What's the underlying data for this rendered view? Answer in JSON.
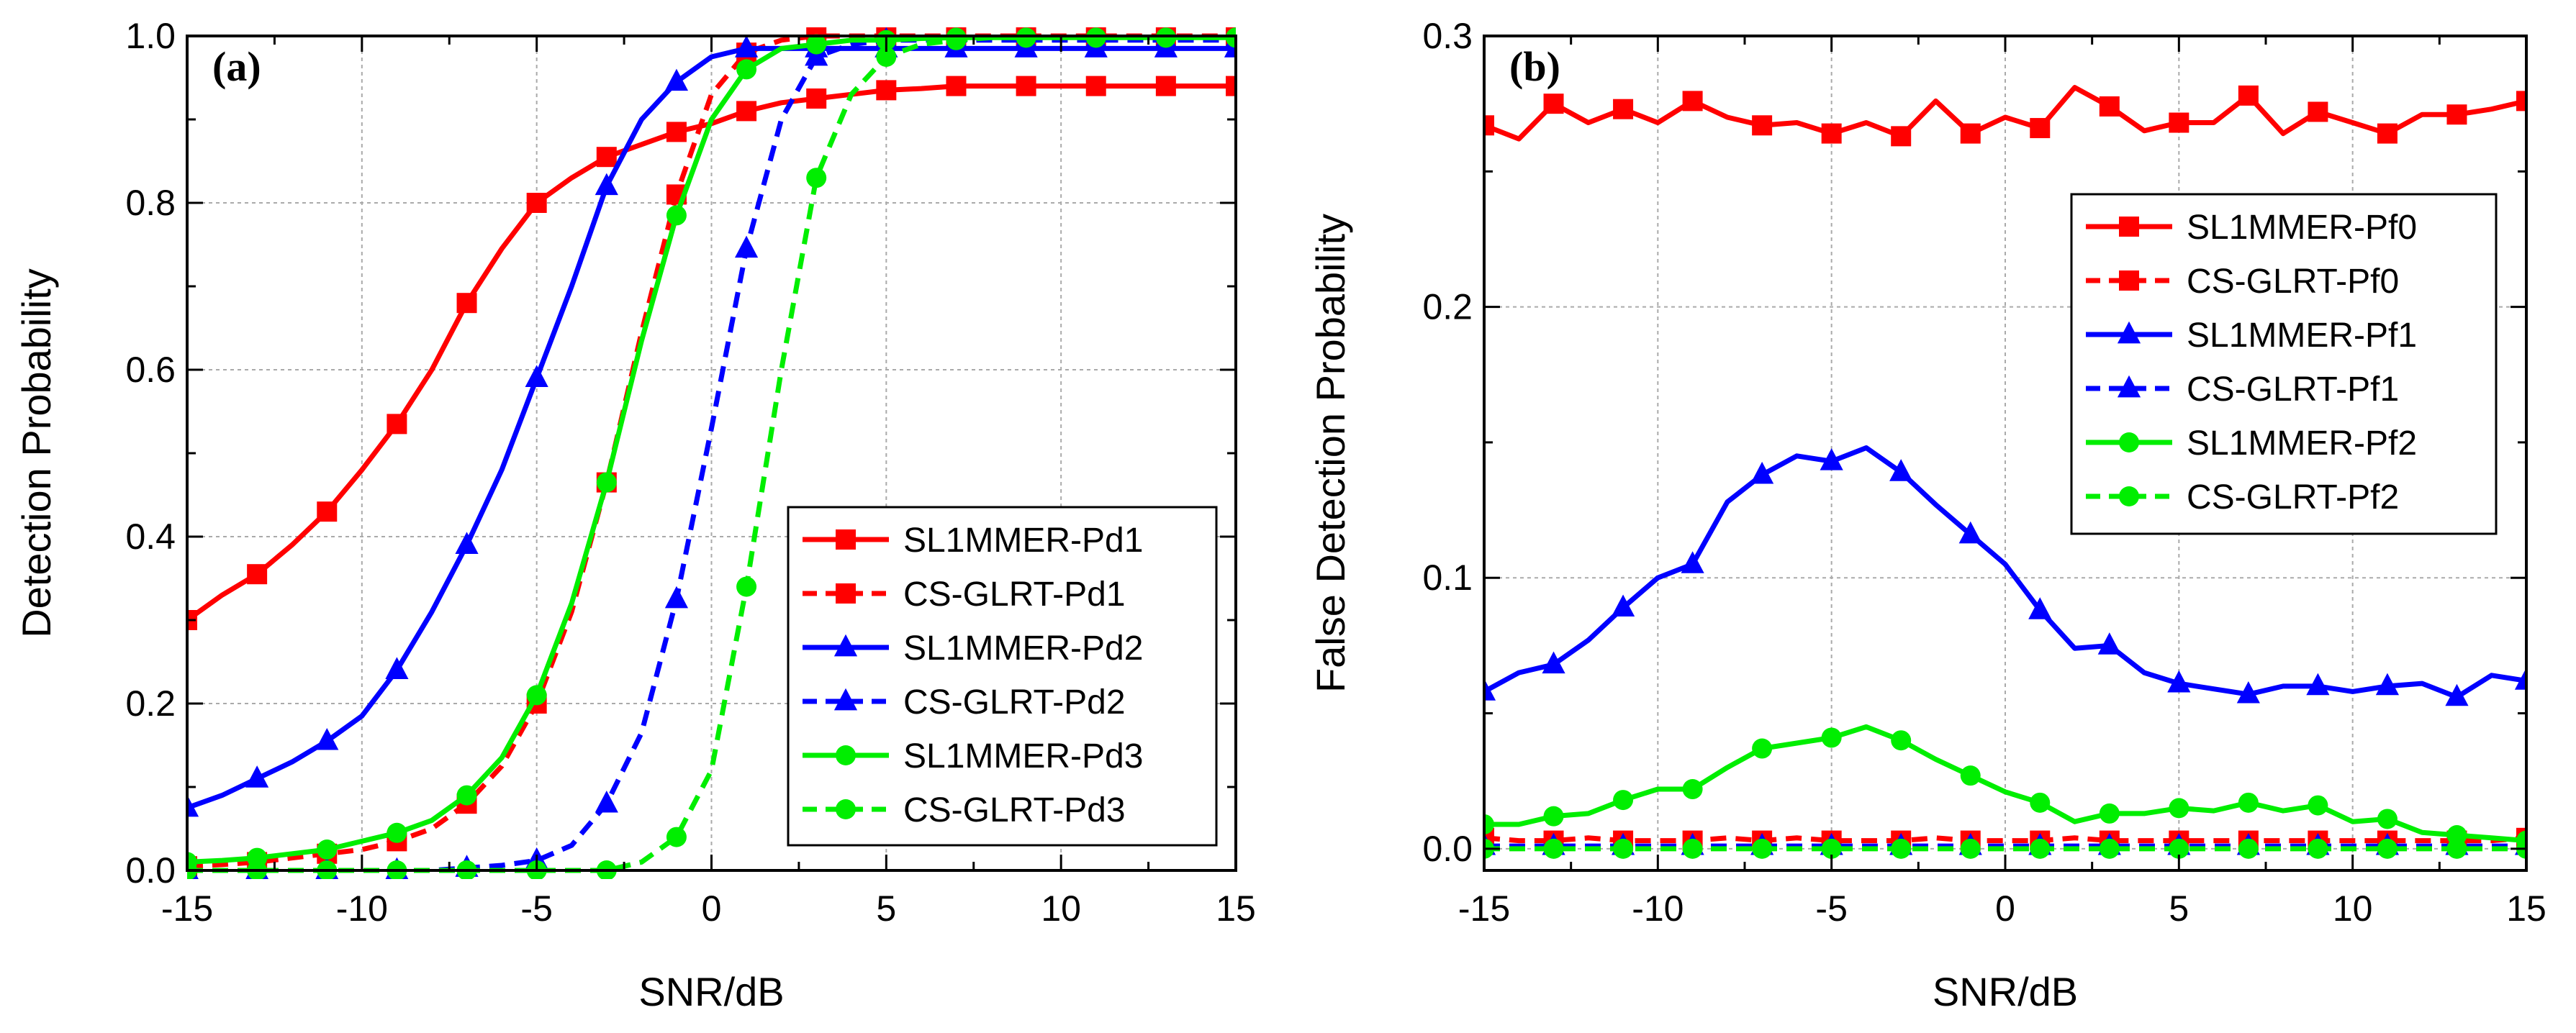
{
  "chart_data": [
    {
      "type": "line",
      "panel_label": "(a)",
      "xlabel": "SNR/dB",
      "ylabel": "Detection Probability",
      "xlim": [
        -15,
        15
      ],
      "ylim": [
        0,
        1.0
      ],
      "x_ticks": [
        "-15",
        "-10",
        "-5",
        "0",
        "5",
        "10",
        "15"
      ],
      "y_ticks": [
        "0.0",
        "0.2",
        "0.4",
        "0.6",
        "0.8",
        "1.0"
      ],
      "grid": true,
      "legend_position": "bottom-right",
      "series": [
        {
          "name": "SL1MMER-Pd1",
          "color": "#ff0000",
          "dash": "solid",
          "marker": "square",
          "x": [
            -15,
            -14,
            -13,
            -12,
            -11,
            -10,
            -9,
            -8,
            -7,
            -6,
            -5,
            -4,
            -3,
            -2,
            -1,
            0,
            1,
            2,
            3,
            4,
            5,
            6,
            7,
            8,
            9,
            10,
            11,
            12,
            13,
            14,
            15
          ],
          "y": [
            0.3,
            0.33,
            0.355,
            0.39,
            0.43,
            0.48,
            0.535,
            0.6,
            0.68,
            0.745,
            0.8,
            0.83,
            0.855,
            0.87,
            0.885,
            0.895,
            0.91,
            0.92,
            0.925,
            0.93,
            0.935,
            0.937,
            0.94,
            0.94,
            0.94,
            0.94,
            0.94,
            0.94,
            0.94,
            0.94,
            0.94
          ]
        },
        {
          "name": "CS-GLRT-Pd1",
          "color": "#ff0000",
          "dash": "dashed",
          "marker": "square",
          "x": [
            -15,
            -14,
            -13,
            -12,
            -11,
            -10,
            -9,
            -8,
            -7,
            -6,
            -5,
            -4,
            -3,
            -2,
            -1,
            0,
            1,
            2,
            3,
            4,
            5,
            6,
            7,
            8,
            9,
            10,
            11,
            12,
            13,
            14,
            15
          ],
          "y": [
            0.005,
            0.007,
            0.01,
            0.015,
            0.02,
            0.025,
            0.035,
            0.05,
            0.08,
            0.125,
            0.2,
            0.31,
            0.465,
            0.645,
            0.81,
            0.93,
            0.98,
            0.995,
            1.0,
            1.0,
            1.0,
            1.0,
            1.0,
            1.0,
            1.0,
            1.0,
            1.0,
            1.0,
            1.0,
            1.0,
            1.0
          ]
        },
        {
          "name": "SL1MMER-Pd2",
          "color": "#0000ff",
          "dash": "solid",
          "marker": "triangle",
          "x": [
            -15,
            -14,
            -13,
            -12,
            -11,
            -10,
            -9,
            -8,
            -7,
            -6,
            -5,
            -4,
            -3,
            -2,
            -1,
            0,
            1,
            2,
            3,
            4,
            5,
            6,
            7,
            8,
            9,
            10,
            11,
            12,
            13,
            14,
            15
          ],
          "y": [
            0.075,
            0.09,
            0.11,
            0.13,
            0.155,
            0.185,
            0.24,
            0.31,
            0.39,
            0.48,
            0.59,
            0.7,
            0.82,
            0.9,
            0.945,
            0.975,
            0.985,
            0.985,
            0.985,
            0.985,
            0.985,
            0.985,
            0.985,
            0.985,
            0.985,
            0.985,
            0.985,
            0.985,
            0.985,
            0.985,
            0.985
          ]
        },
        {
          "name": "CS-GLRT-Pd2",
          "color": "#0000ff",
          "dash": "dashed",
          "marker": "triangle",
          "x": [
            -15,
            -14,
            -13,
            -12,
            -11,
            -10,
            -9,
            -8,
            -7,
            -6,
            -5,
            -4,
            -3,
            -2,
            -1,
            0,
            1,
            2,
            3,
            4,
            5,
            6,
            7,
            8,
            9,
            10,
            11,
            12,
            13,
            14,
            15
          ],
          "y": [
            0.0,
            0.0,
            0.0,
            0.0,
            0.0,
            0.0,
            0.0,
            0.0,
            0.003,
            0.006,
            0.012,
            0.03,
            0.08,
            0.165,
            0.325,
            0.53,
            0.745,
            0.9,
            0.975,
            0.99,
            0.995,
            0.995,
            0.995,
            0.995,
            0.995,
            0.995,
            0.995,
            0.995,
            0.995,
            0.995,
            0.995
          ]
        },
        {
          "name": "SL1MMER-Pd3",
          "color": "#00ee00",
          "dash": "solid",
          "marker": "circle",
          "x": [
            -15,
            -14,
            -13,
            -12,
            -11,
            -10,
            -9,
            -8,
            -7,
            -6,
            -5,
            -4,
            -3,
            -2,
            -1,
            0,
            1,
            2,
            3,
            4,
            5,
            6,
            7,
            8,
            9,
            10,
            11,
            12,
            13,
            14,
            15
          ],
          "y": [
            0.01,
            0.012,
            0.015,
            0.02,
            0.025,
            0.035,
            0.045,
            0.06,
            0.09,
            0.135,
            0.21,
            0.32,
            0.465,
            0.635,
            0.785,
            0.9,
            0.96,
            0.985,
            0.99,
            0.995,
            0.995,
            0.997,
            0.998,
            0.998,
            0.998,
            0.998,
            0.998,
            0.998,
            0.998,
            0.998,
            0.998
          ]
        },
        {
          "name": "CS-GLRT-Pd3",
          "color": "#00ee00",
          "dash": "dashed",
          "marker": "circle",
          "x": [
            -15,
            -14,
            -13,
            -12,
            -11,
            -10,
            -9,
            -8,
            -7,
            -6,
            -5,
            -4,
            -3,
            -2,
            -1,
            0,
            1,
            2,
            3,
            4,
            5,
            6,
            7,
            8,
            9,
            10,
            11,
            12,
            13,
            14,
            15
          ],
          "y": [
            0.0,
            0.0,
            0.0,
            0.0,
            0.0,
            0.0,
            0.0,
            0.0,
            0.0,
            0.0,
            0.0,
            0.0,
            0.0,
            0.01,
            0.04,
            0.12,
            0.34,
            0.6,
            0.83,
            0.93,
            0.975,
            0.99,
            0.995,
            0.998,
            0.998,
            0.998,
            0.998,
            0.998,
            0.998,
            0.998,
            0.998
          ]
        }
      ]
    },
    {
      "type": "line",
      "panel_label": "(b)",
      "xlabel": "SNR/dB",
      "ylabel": "False Detection Probability",
      "xlim": [
        -15,
        15
      ],
      "ylim": [
        -0.008,
        0.3
      ],
      "x_ticks": [
        "-15",
        "-10",
        "-5",
        "0",
        "5",
        "10",
        "15"
      ],
      "y_ticks": [
        "0.0",
        "0.1",
        "0.2",
        "0.3"
      ],
      "grid": true,
      "legend_position": "top-right",
      "series": [
        {
          "name": "SL1MMER-Pf0",
          "color": "#ff0000",
          "dash": "solid",
          "marker": "square",
          "x": [
            -15,
            -14,
            -13,
            -12,
            -11,
            -10,
            -9,
            -8,
            -7,
            -6,
            -5,
            -4,
            -3,
            -2,
            -1,
            0,
            1,
            2,
            3,
            4,
            5,
            6,
            7,
            8,
            9,
            10,
            11,
            12,
            13,
            14,
            15
          ],
          "y": [
            0.267,
            0.262,
            0.275,
            0.268,
            0.273,
            0.268,
            0.276,
            0.27,
            0.267,
            0.268,
            0.264,
            0.268,
            0.263,
            0.276,
            0.264,
            0.27,
            0.266,
            0.281,
            0.274,
            0.265,
            0.268,
            0.268,
            0.278,
            0.264,
            0.272,
            0.268,
            0.264,
            0.271,
            0.271,
            0.273,
            0.276
          ]
        },
        {
          "name": "CS-GLRT-Pf0",
          "color": "#ff0000",
          "dash": "dashed",
          "marker": "square",
          "x": [
            -15,
            -14,
            -13,
            -12,
            -11,
            -10,
            -9,
            -8,
            -7,
            -6,
            -5,
            -4,
            -3,
            -2,
            -1,
            0,
            1,
            2,
            3,
            4,
            5,
            6,
            7,
            8,
            9,
            10,
            11,
            12,
            13,
            14,
            15
          ],
          "y": [
            0.004,
            0.003,
            0.003,
            0.004,
            0.003,
            0.003,
            0.003,
            0.004,
            0.003,
            0.004,
            0.003,
            0.003,
            0.003,
            0.004,
            0.003,
            0.003,
            0.003,
            0.004,
            0.003,
            0.003,
            0.003,
            0.003,
            0.003,
            0.003,
            0.003,
            0.003,
            0.003,
            0.003,
            0.003,
            0.003,
            0.004
          ]
        },
        {
          "name": "SL1MMER-Pf1",
          "color": "#0000ff",
          "dash": "solid",
          "marker": "triangle",
          "x": [
            -15,
            -14,
            -13,
            -12,
            -11,
            -10,
            -9,
            -8,
            -7,
            -6,
            -5,
            -4,
            -3,
            -2,
            -1,
            0,
            1,
            2,
            3,
            4,
            5,
            6,
            7,
            8,
            9,
            10,
            11,
            12,
            13,
            14,
            15
          ],
          "y": [
            0.058,
            0.065,
            0.068,
            0.077,
            0.089,
            0.1,
            0.105,
            0.128,
            0.138,
            0.145,
            0.143,
            0.148,
            0.139,
            0.127,
            0.116,
            0.105,
            0.088,
            0.074,
            0.075,
            0.065,
            0.061,
            0.059,
            0.057,
            0.06,
            0.06,
            0.058,
            0.06,
            0.061,
            0.056,
            0.064,
            0.062
          ]
        },
        {
          "name": "CS-GLRT-Pf1",
          "color": "#0000ff",
          "dash": "dashed",
          "marker": "triangle",
          "x": [
            -15,
            -14,
            -13,
            -12,
            -11,
            -10,
            -9,
            -8,
            -7,
            -6,
            -5,
            -4,
            -3,
            -2,
            -1,
            0,
            1,
            2,
            3,
            4,
            5,
            6,
            7,
            8,
            9,
            10,
            11,
            12,
            13,
            14,
            15
          ],
          "y": [
            0.001,
            0.001,
            0.001,
            0.001,
            0.001,
            0.001,
            0.001,
            0.001,
            0.001,
            0.001,
            0.001,
            0.001,
            0.001,
            0.001,
            0.001,
            0.001,
            0.001,
            0.001,
            0.001,
            0.001,
            0.001,
            0.001,
            0.001,
            0.001,
            0.001,
            0.001,
            0.001,
            0.001,
            0.001,
            0.001,
            0.001
          ]
        },
        {
          "name": "SL1MMER-Pf2",
          "color": "#00ee00",
          "dash": "solid",
          "marker": "circle",
          "x": [
            -15,
            -14,
            -13,
            -12,
            -11,
            -10,
            -9,
            -8,
            -7,
            -6,
            -5,
            -4,
            -3,
            -2,
            -1,
            0,
            1,
            2,
            3,
            4,
            5,
            6,
            7,
            8,
            9,
            10,
            11,
            12,
            13,
            14,
            15
          ],
          "y": [
            0.009,
            0.009,
            0.012,
            0.013,
            0.018,
            0.022,
            0.022,
            0.03,
            0.037,
            0.039,
            0.041,
            0.045,
            0.04,
            0.033,
            0.027,
            0.021,
            0.017,
            0.01,
            0.013,
            0.013,
            0.015,
            0.014,
            0.017,
            0.014,
            0.016,
            0.01,
            0.011,
            0.006,
            0.005,
            0.004,
            0.003
          ]
        },
        {
          "name": "CS-GLRT-Pf2",
          "color": "#00ee00",
          "dash": "dashed",
          "marker": "circle",
          "x": [
            -15,
            -14,
            -13,
            -12,
            -11,
            -10,
            -9,
            -8,
            -7,
            -6,
            -5,
            -4,
            -3,
            -2,
            -1,
            0,
            1,
            2,
            3,
            4,
            5,
            6,
            7,
            8,
            9,
            10,
            11,
            12,
            13,
            14,
            15
          ],
          "y": [
            0.0,
            0.0,
            0.0,
            0.0,
            0.0,
            0.0,
            0.0,
            0.0,
            0.0,
            0.0,
            0.0,
            0.0,
            0.0,
            0.0,
            0.0,
            0.0,
            0.0,
            0.0,
            0.0,
            0.0,
            0.0,
            0.0,
            0.0,
            0.0,
            0.0,
            0.0,
            0.0,
            0.0,
            0.0,
            0.0,
            0.0
          ]
        }
      ]
    }
  ]
}
